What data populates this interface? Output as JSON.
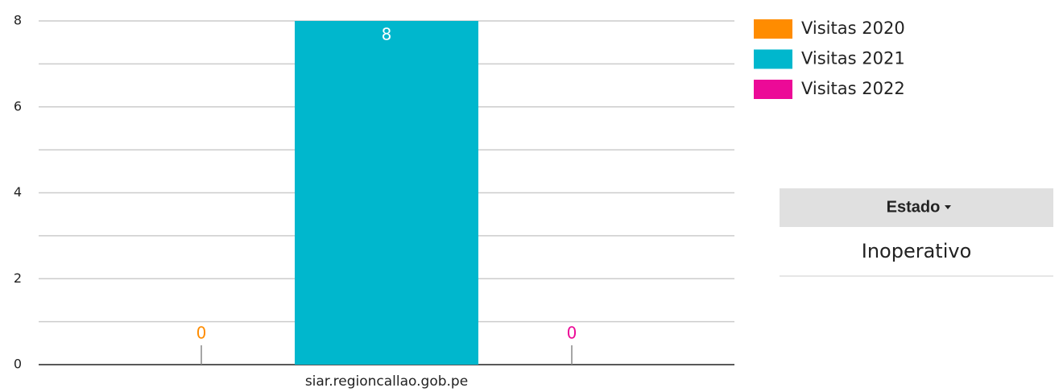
{
  "chart_data": {
    "type": "bar",
    "categories": [
      "siar.regioncallao.gob.pe"
    ],
    "series": [
      {
        "name": "Visitas 2020",
        "color": "#ff8c00",
        "values": [
          0
        ]
      },
      {
        "name": "Visitas 2021",
        "color": "#00b7cd",
        "values": [
          8
        ]
      },
      {
        "name": "Visitas 2022",
        "color": "#ec0a97",
        "values": [
          0
        ]
      }
    ],
    "ylim": [
      0,
      8
    ],
    "yticks": [
      0,
      2,
      4,
      6,
      8
    ],
    "minor_yticks": [
      1,
      3,
      5,
      7
    ],
    "grid": true,
    "legend": "top-right"
  },
  "filter": {
    "label": "Estado",
    "option": "Inoperativo"
  }
}
